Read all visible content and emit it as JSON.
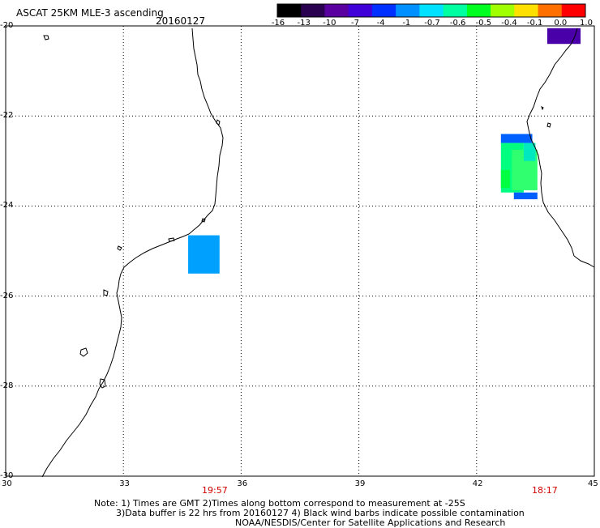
{
  "title": "ASCAT 25KM MLE-3 ascending",
  "date": "20160127",
  "colorbar": {
    "tick_labels": [
      "-16",
      "-13",
      "-10",
      "-7",
      "-4",
      "-1",
      "-0.7",
      "-0.6",
      "-0.5",
      "-0.4",
      "-0.1",
      "0.0",
      "1.0"
    ],
    "colors": [
      "#000000",
      "#2a0050",
      "#5a00a0",
      "#4000d8",
      "#0030ff",
      "#0090ff",
      "#00e0ff",
      "#00ffa0",
      "#00ff20",
      "#a0ff00",
      "#ffe000",
      "#ff7000",
      "#ff0000"
    ]
  },
  "x_ticks": [
    "30",
    "33",
    "36",
    "39",
    "42",
    "45"
  ],
  "y_ticks": [
    "-20",
    "-22",
    "-24",
    "-26",
    "-28",
    "-30"
  ],
  "times": [
    "19:57",
    "18:17"
  ],
  "notes": [
    "Note: 1) Times are GMT 2)Times along bottom correspond to measurement at -25S",
    "3)Data buffer is 22 hrs from 20160127 4) Black wind barbs indicate possible contamination",
    "NOAA/NESDIS/Center for Satellite Applications and Research"
  ],
  "map_data": {
    "lon_range": [
      30,
      45
    ],
    "lat_range": [
      -30,
      -20
    ],
    "data_cells": [
      {
        "lon": [
          34.65,
          35.45
        ],
        "lat": [
          -25.5,
          -24.65
        ],
        "color": "#00a0ff"
      },
      {
        "lon": [
          42.62,
          43.42
        ],
        "lat": [
          -22.6,
          -22.4
        ],
        "color": "#0060ff"
      },
      {
        "lon": [
          42.62,
          43.2
        ],
        "lat": [
          -23.7,
          -22.6
        ],
        "color": "#00ff80"
      },
      {
        "lon": [
          42.9,
          43.55
        ],
        "lat": [
          -23.65,
          -22.75
        ],
        "color": "#30ff70"
      },
      {
        "lon": [
          42.62,
          42.85
        ],
        "lat": [
          -23.6,
          -23.2
        ],
        "color": "#00ff40"
      },
      {
        "lon": [
          42.95,
          43.55
        ],
        "lat": [
          -23.85,
          -23.7
        ],
        "color": "#0060ff"
      },
      {
        "lon": [
          43.2,
          43.5
        ],
        "lat": [
          -23.0,
          -22.6
        ],
        "color": "#00e8c0"
      },
      {
        "lon": [
          43.8,
          44.65
        ],
        "lat": [
          -20.4,
          -20.05
        ],
        "color": "#4a00a8"
      }
    ]
  }
}
